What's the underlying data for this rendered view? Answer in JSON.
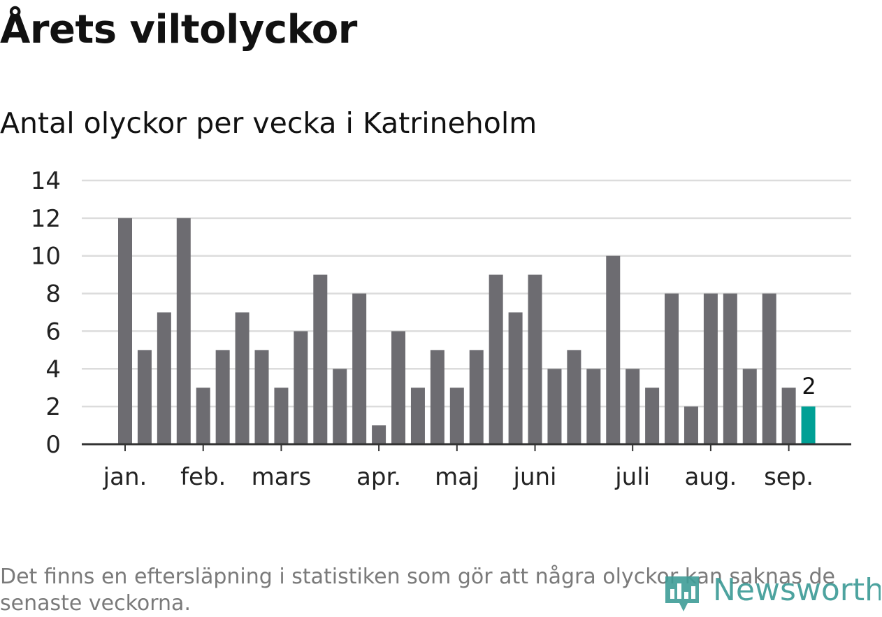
{
  "header": {
    "title": "Årets viltolyckor",
    "subtitle": "Antal olyckor per vecka i Katrineholm"
  },
  "footnote": "Det finns en eftersläpning i statistiken som gör att några olyckor kan saknas de senaste veckorna.",
  "logo": {
    "text": "Newsworthy",
    "icon": "bar-chart-bubble-icon"
  },
  "colors": {
    "bar": "#6d6c71",
    "highlight": "#00a095",
    "grid": "#dcdcdc",
    "axis": "#333333"
  },
  "chart_data": {
    "type": "bar",
    "title": "Antal olyckor per vecka i Katrineholm",
    "xlabel": "",
    "ylabel": "",
    "values": [
      12,
      5,
      7,
      12,
      3,
      5,
      7,
      5,
      3,
      6,
      9,
      4,
      8,
      1,
      6,
      3,
      5,
      3,
      5,
      9,
      7,
      9,
      4,
      5,
      4,
      10,
      4,
      3,
      8,
      2,
      8,
      8,
      4,
      8,
      3,
      2
    ],
    "highlight_index": 35,
    "highlight_label": "2",
    "ylim": [
      0,
      14
    ],
    "yticks": [
      "0",
      "2",
      "4",
      "6",
      "8",
      "10",
      "12",
      "14"
    ],
    "month_labels": [
      {
        "label": "jan.",
        "week_position": 0.0
      },
      {
        "label": "feb.",
        "week_position": 4.0
      },
      {
        "label": "mars",
        "week_position": 8.0
      },
      {
        "label": "apr.",
        "week_position": 13.0
      },
      {
        "label": "maj",
        "week_position": 17.0
      },
      {
        "label": "juni",
        "week_position": 21.0
      },
      {
        "label": "juli",
        "week_position": 26.0
      },
      {
        "label": "aug.",
        "week_position": 30.0
      },
      {
        "label": "sep.",
        "week_position": 34.0
      }
    ],
    "grid": true
  }
}
